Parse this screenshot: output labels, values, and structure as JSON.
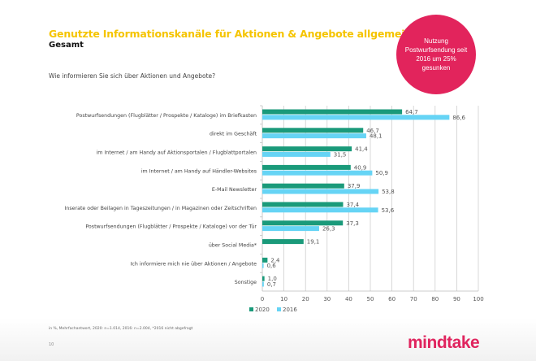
{
  "header": {
    "title": "Genutzte Informationskanäle für Aktionen & Angebote allgemein",
    "subtitle": "Gesamt",
    "question": "Wie informieren Sie sich über Aktionen und Angebote?"
  },
  "badge": {
    "text": "Nutzung Postwurfsendung seit 2016 um 25% gesunken",
    "color": "#e2245c"
  },
  "footer": {
    "footnote": "in %, Mehrfachantwort, 2020: n=1.014, 2016: n=2.004, *2016 nicht abgefragt",
    "page_number": "10",
    "logo": "mindtake"
  },
  "chart_data": {
    "type": "bar",
    "orientation": "horizontal",
    "categories": [
      "Postwurfsendungen (Flugblätter / Prospekte / Kataloge) im Briefkasten",
      "direkt im Geschäft",
      "im Internet / am Handy auf Aktionsportalen / Flugblattportalen",
      "im Internet / am Handy auf Händler-Websites",
      "E-Mail Newsletter",
      "Inserate oder Beilagen in Tageszeitungen / in Magazinen oder Zeitschriften",
      "Postwurfsendungen (Flugblätter / Prospekte / Kataloge) vor der Tür",
      "über Social Media*",
      "Ich informiere mich nie über Aktionen / Angebote",
      "Sonstige"
    ],
    "series": [
      {
        "name": "2020",
        "color": "#1a9a7a",
        "values": [
          64.7,
          46.7,
          41.4,
          40.9,
          37.9,
          37.4,
          37.3,
          19.1,
          2.4,
          1.0
        ],
        "labels": [
          "64,7",
          "46,7",
          "41,4",
          "40,9",
          "37,9",
          "37,4",
          "37,3",
          "19,1",
          "2,4",
          "1,0"
        ]
      },
      {
        "name": "2016",
        "color": "#66d4f5",
        "values": [
          86.6,
          48.1,
          31.5,
          50.9,
          53.8,
          53.6,
          26.3,
          null,
          0.6,
          0.7
        ],
        "labels": [
          "86,6",
          "48,1",
          "31,5",
          "50,9",
          "53,8",
          "53,6",
          "26,3",
          "",
          "0,6",
          "0,7"
        ]
      }
    ],
    "xlim": [
      0,
      100
    ],
    "xticks": [
      "0",
      "10",
      "20",
      "30",
      "40",
      "50",
      "60",
      "70",
      "80",
      "90",
      "100"
    ],
    "grid": true,
    "legend": "bottom"
  }
}
